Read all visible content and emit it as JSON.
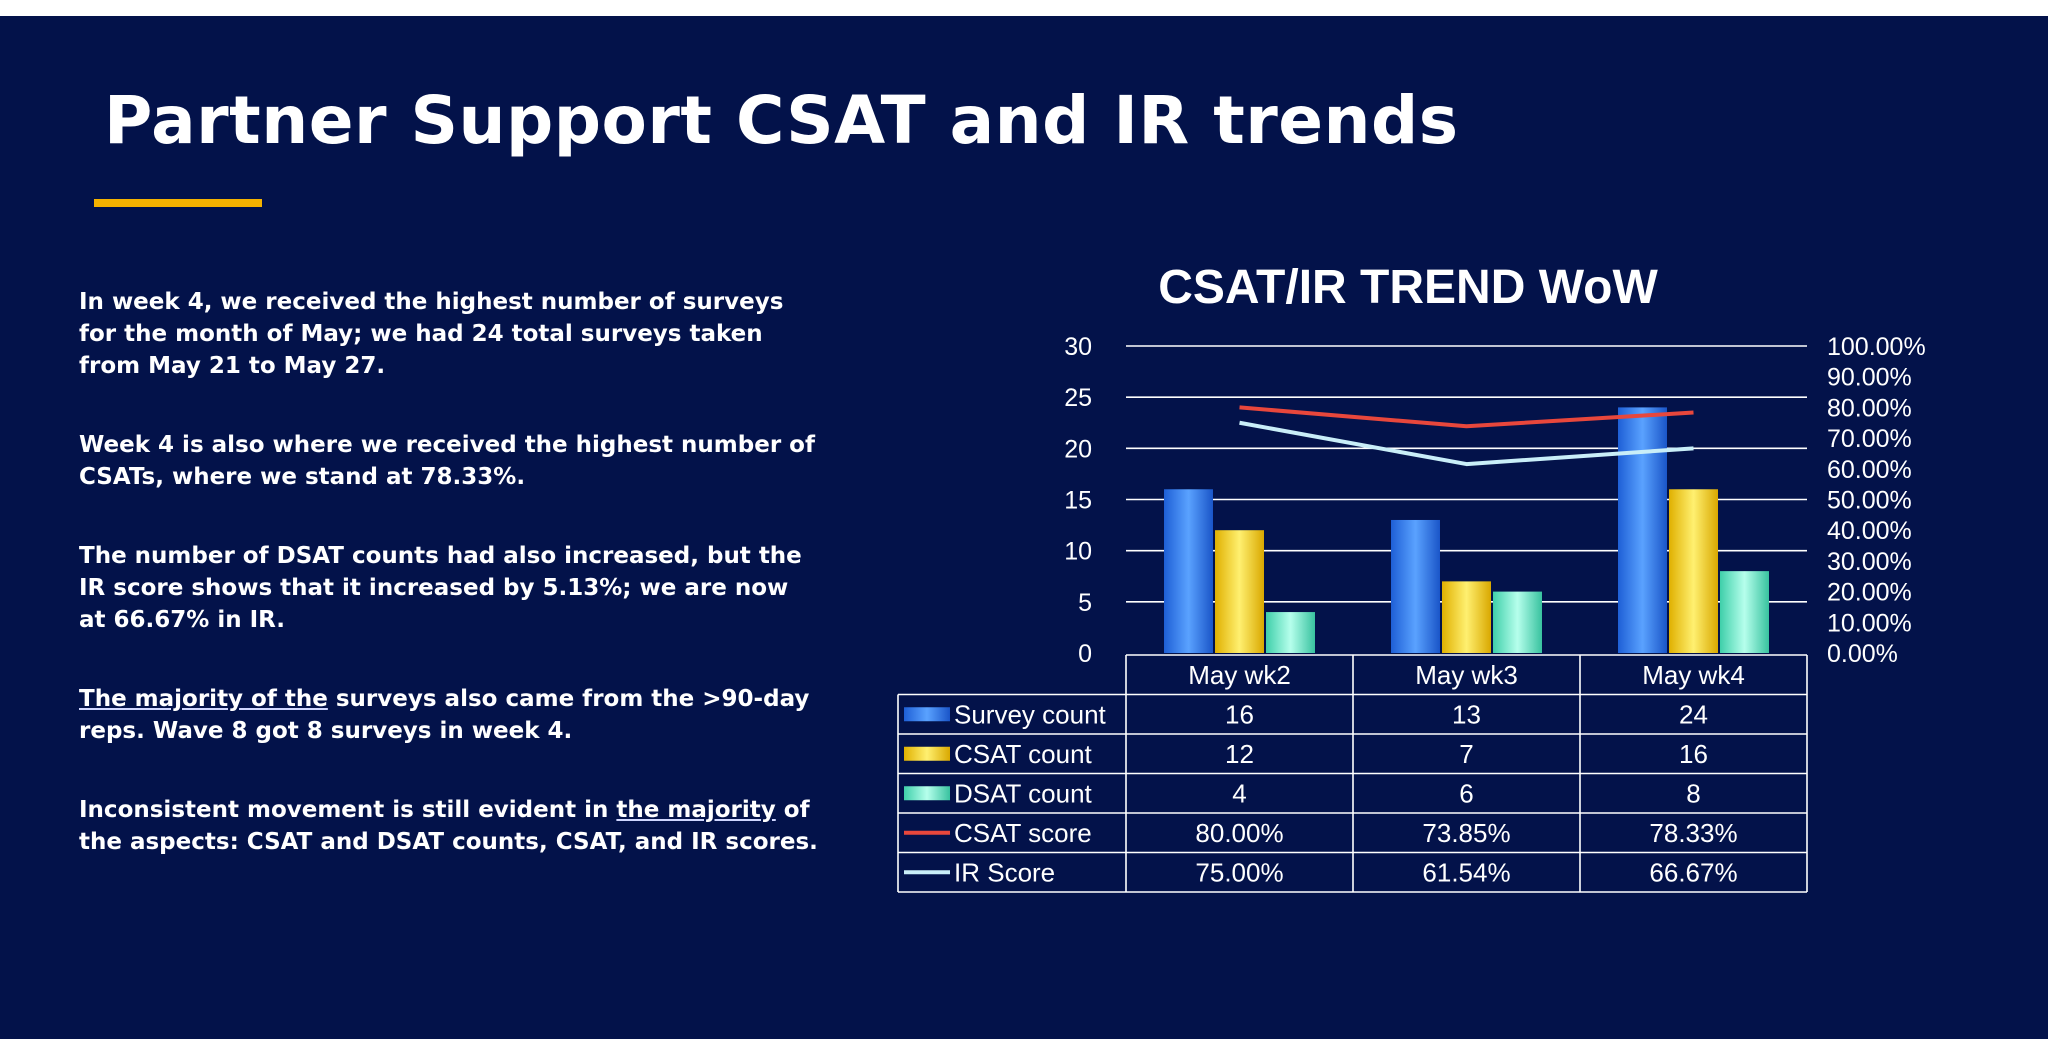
{
  "slide": {
    "title": "Partner Support CSAT and IR trends",
    "paragraphs": [
      {
        "text": "In week 4, we received the highest number of surveys for the month of May; we had 24 total surveys taken from May 21 to May 27."
      },
      {
        "text": "Week 4 is also where we received the highest number of CSATs, where we stand at 78.33%."
      },
      {
        "text": "The number of DSAT counts had also increased, but the IR score shows that it increased by 5.13%; we are now at 66.67% in IR."
      },
      {
        "underlined": "The majority of the",
        "rest": " surveys also came from the >90-day reps. Wave 8 got 8 surveys in week 4."
      },
      {
        "before": "Inconsistent movement is still evident in ",
        "underlined": "the majority",
        "rest": " of the aspects: CSAT and DSAT counts, CSAT, and IR scores."
      }
    ]
  },
  "colors": {
    "background": "#03124a",
    "accent": "#f5b200",
    "survey": "#2f7ff0",
    "csat_count": "#ffd400",
    "dsat_count": "#5fe3c2",
    "csat_score": "#e8473c",
    "ir_score": "#c9eef8"
  },
  "chart_data": {
    "type": "bar",
    "title": "CSAT/IR TREND WoW",
    "categories": [
      "May wk2",
      "May wk3",
      "May wk4"
    ],
    "series": [
      {
        "name": "Survey count",
        "kind": "bar",
        "axis": "left",
        "values": [
          16,
          13,
          24
        ],
        "labels": [
          "16",
          "13",
          "24"
        ]
      },
      {
        "name": "CSAT count",
        "kind": "bar",
        "axis": "left",
        "values": [
          12,
          7,
          16
        ],
        "labels": [
          "12",
          "7",
          "16"
        ]
      },
      {
        "name": "DSAT count",
        "kind": "bar",
        "axis": "left",
        "values": [
          4,
          6,
          8
        ],
        "labels": [
          "4",
          "6",
          "8"
        ]
      },
      {
        "name": "CSAT score",
        "kind": "line",
        "axis": "right",
        "values": [
          80.0,
          73.85,
          78.33
        ],
        "labels": [
          "80.00%",
          "73.85%",
          "78.33%"
        ]
      },
      {
        "name": "IR Score",
        "kind": "line",
        "axis": "right",
        "values": [
          75.0,
          61.54,
          66.67
        ],
        "labels": [
          "75.00%",
          "61.54%",
          "66.67%"
        ]
      }
    ],
    "ylim": [
      0,
      30
    ],
    "y_ticks": [
      "0",
      "5",
      "10",
      "15",
      "20",
      "25",
      "30"
    ],
    "y2lim": [
      0,
      100
    ],
    "y2_ticks": [
      "0.00%",
      "10.00%",
      "20.00%",
      "30.00%",
      "40.00%",
      "50.00%",
      "60.00%",
      "70.00%",
      "80.00%",
      "90.00%",
      "100.00%"
    ],
    "grid": true,
    "legend": "data-table"
  }
}
